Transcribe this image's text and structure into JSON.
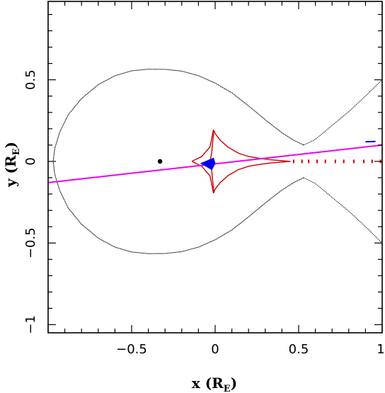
{
  "chart_data": {
    "type": "line",
    "xlabel": {
      "main": "x (R",
      "sub": "E",
      "close": ")"
    },
    "ylabel": {
      "main": "y (R",
      "sub": "E",
      "close": ")"
    },
    "xlim": [
      -1,
      1
    ],
    "ylim": [
      -1.05,
      0.98
    ],
    "xticks": [
      -0.5,
      0,
      0.5,
      1
    ],
    "xtick_labels": [
      "−0.5",
      "0",
      "0.5",
      "1"
    ],
    "yticks": [
      -1,
      -0.5,
      0,
      0.5
    ],
    "ytick_labels": [
      "−1",
      "−0.5",
      "0",
      "0.5"
    ],
    "xminor_step": 0.1,
    "yminor_step": 0.1,
    "grid": false,
    "colors": {
      "critical_curve": "#000000",
      "caustic": "#cc0000",
      "source": "#0000ee",
      "trajectory": "#ee00ee",
      "lens": "#000000"
    },
    "lens_point": {
      "x": -0.33,
      "y": 0.0
    },
    "critical_curve": {
      "left_lobe_upper": [
        [
          0.53,
          0.1
        ],
        [
          0.47,
          0.13
        ],
        [
          0.4,
          0.175
        ],
        [
          0.3,
          0.255
        ],
        [
          0.2,
          0.34
        ],
        [
          0.1,
          0.42
        ],
        [
          0.0,
          0.48
        ],
        [
          -0.1,
          0.525
        ],
        [
          -0.2,
          0.553
        ],
        [
          -0.3,
          0.564
        ],
        [
          -0.4,
          0.565
        ],
        [
          -0.5,
          0.555
        ],
        [
          -0.6,
          0.525
        ],
        [
          -0.7,
          0.47
        ],
        [
          -0.8,
          0.385
        ],
        [
          -0.88,
          0.285
        ],
        [
          -0.93,
          0.18
        ],
        [
          -0.96,
          0.08
        ],
        [
          -0.97,
          0.0
        ]
      ],
      "right_upper": [
        [
          0.53,
          0.1
        ],
        [
          0.6,
          0.135
        ],
        [
          0.7,
          0.22
        ],
        [
          0.8,
          0.305
        ],
        [
          0.9,
          0.4
        ],
        [
          1.0,
          0.5
        ]
      ]
    },
    "caustic": {
      "cusp_upper": [
        [
          -0.03,
          0.0
        ],
        [
          -0.02,
          0.06
        ],
        [
          -0.015,
          0.12
        ],
        [
          -0.01,
          0.16
        ],
        [
          -0.01,
          0.195
        ],
        [
          0.0,
          0.17
        ],
        [
          0.03,
          0.13
        ],
        [
          0.08,
          0.085
        ],
        [
          0.14,
          0.05
        ],
        [
          0.2,
          0.03
        ],
        [
          0.27,
          0.018
        ],
        [
          0.33,
          0.01
        ],
        [
          0.4,
          0.004
        ],
        [
          0.45,
          0.0
        ]
      ],
      "left_cusp_tip": [
        -0.14,
        0.0
      ],
      "dotted_tail": [
        [
          0.47,
          0.0
        ],
        [
          0.52,
          0.0
        ],
        [
          0.56,
          0.0
        ],
        [
          0.61,
          0.0
        ],
        [
          0.66,
          0.0
        ],
        [
          0.72,
          0.0
        ],
        [
          0.77,
          0.0
        ],
        [
          0.83,
          0.0
        ],
        [
          0.89,
          0.0
        ],
        [
          0.94,
          0.0
        ],
        [
          0.99,
          0.0
        ]
      ]
    },
    "source": {
      "tip": [
        -0.085,
        -0.012
      ],
      "tail_upper": [
        -0.01,
        0.02
      ],
      "tail_lower": [
        -0.02,
        -0.05
      ],
      "far_segment": [
        [
          0.9,
          0.12
        ],
        [
          0.96,
          0.122
        ]
      ]
    },
    "trajectory": [
      [
        -1.0,
        -0.13
      ],
      [
        1.0,
        0.1
      ]
    ]
  }
}
